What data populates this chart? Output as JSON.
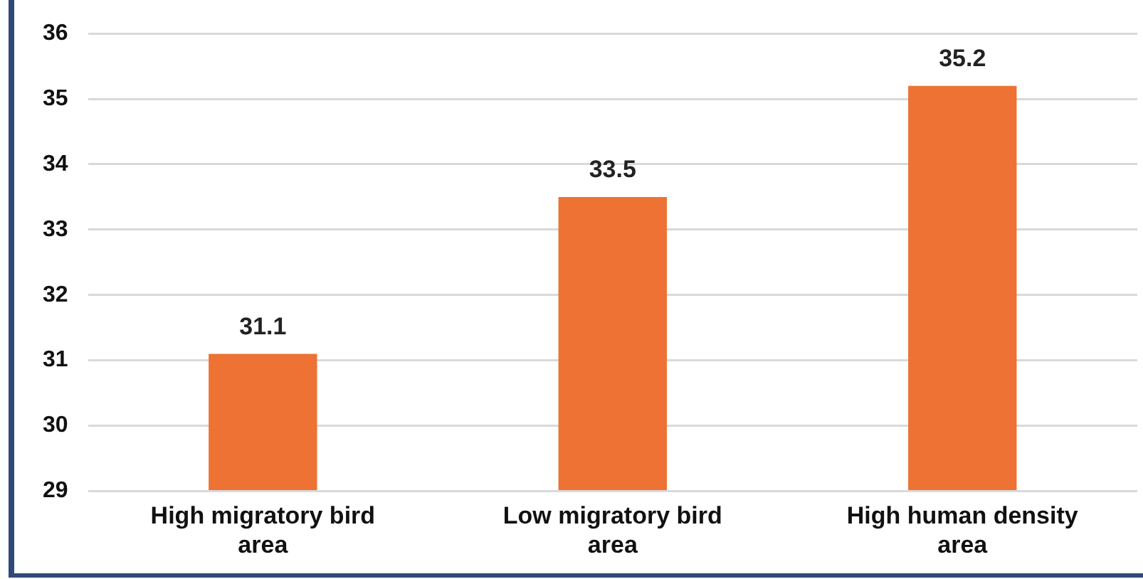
{
  "chart_data": {
    "type": "bar",
    "categories": [
      "High migratory bird area",
      "Low migratory bird area",
      "High human density area"
    ],
    "values": [
      31.1,
      33.5,
      35.2
    ],
    "color": "#ed7233",
    "ylim": [
      29,
      36
    ],
    "yticks": [
      29,
      30,
      31,
      32,
      33,
      34,
      35,
      36
    ],
    "grid": "y",
    "data_labels": true,
    "legend": false
  }
}
